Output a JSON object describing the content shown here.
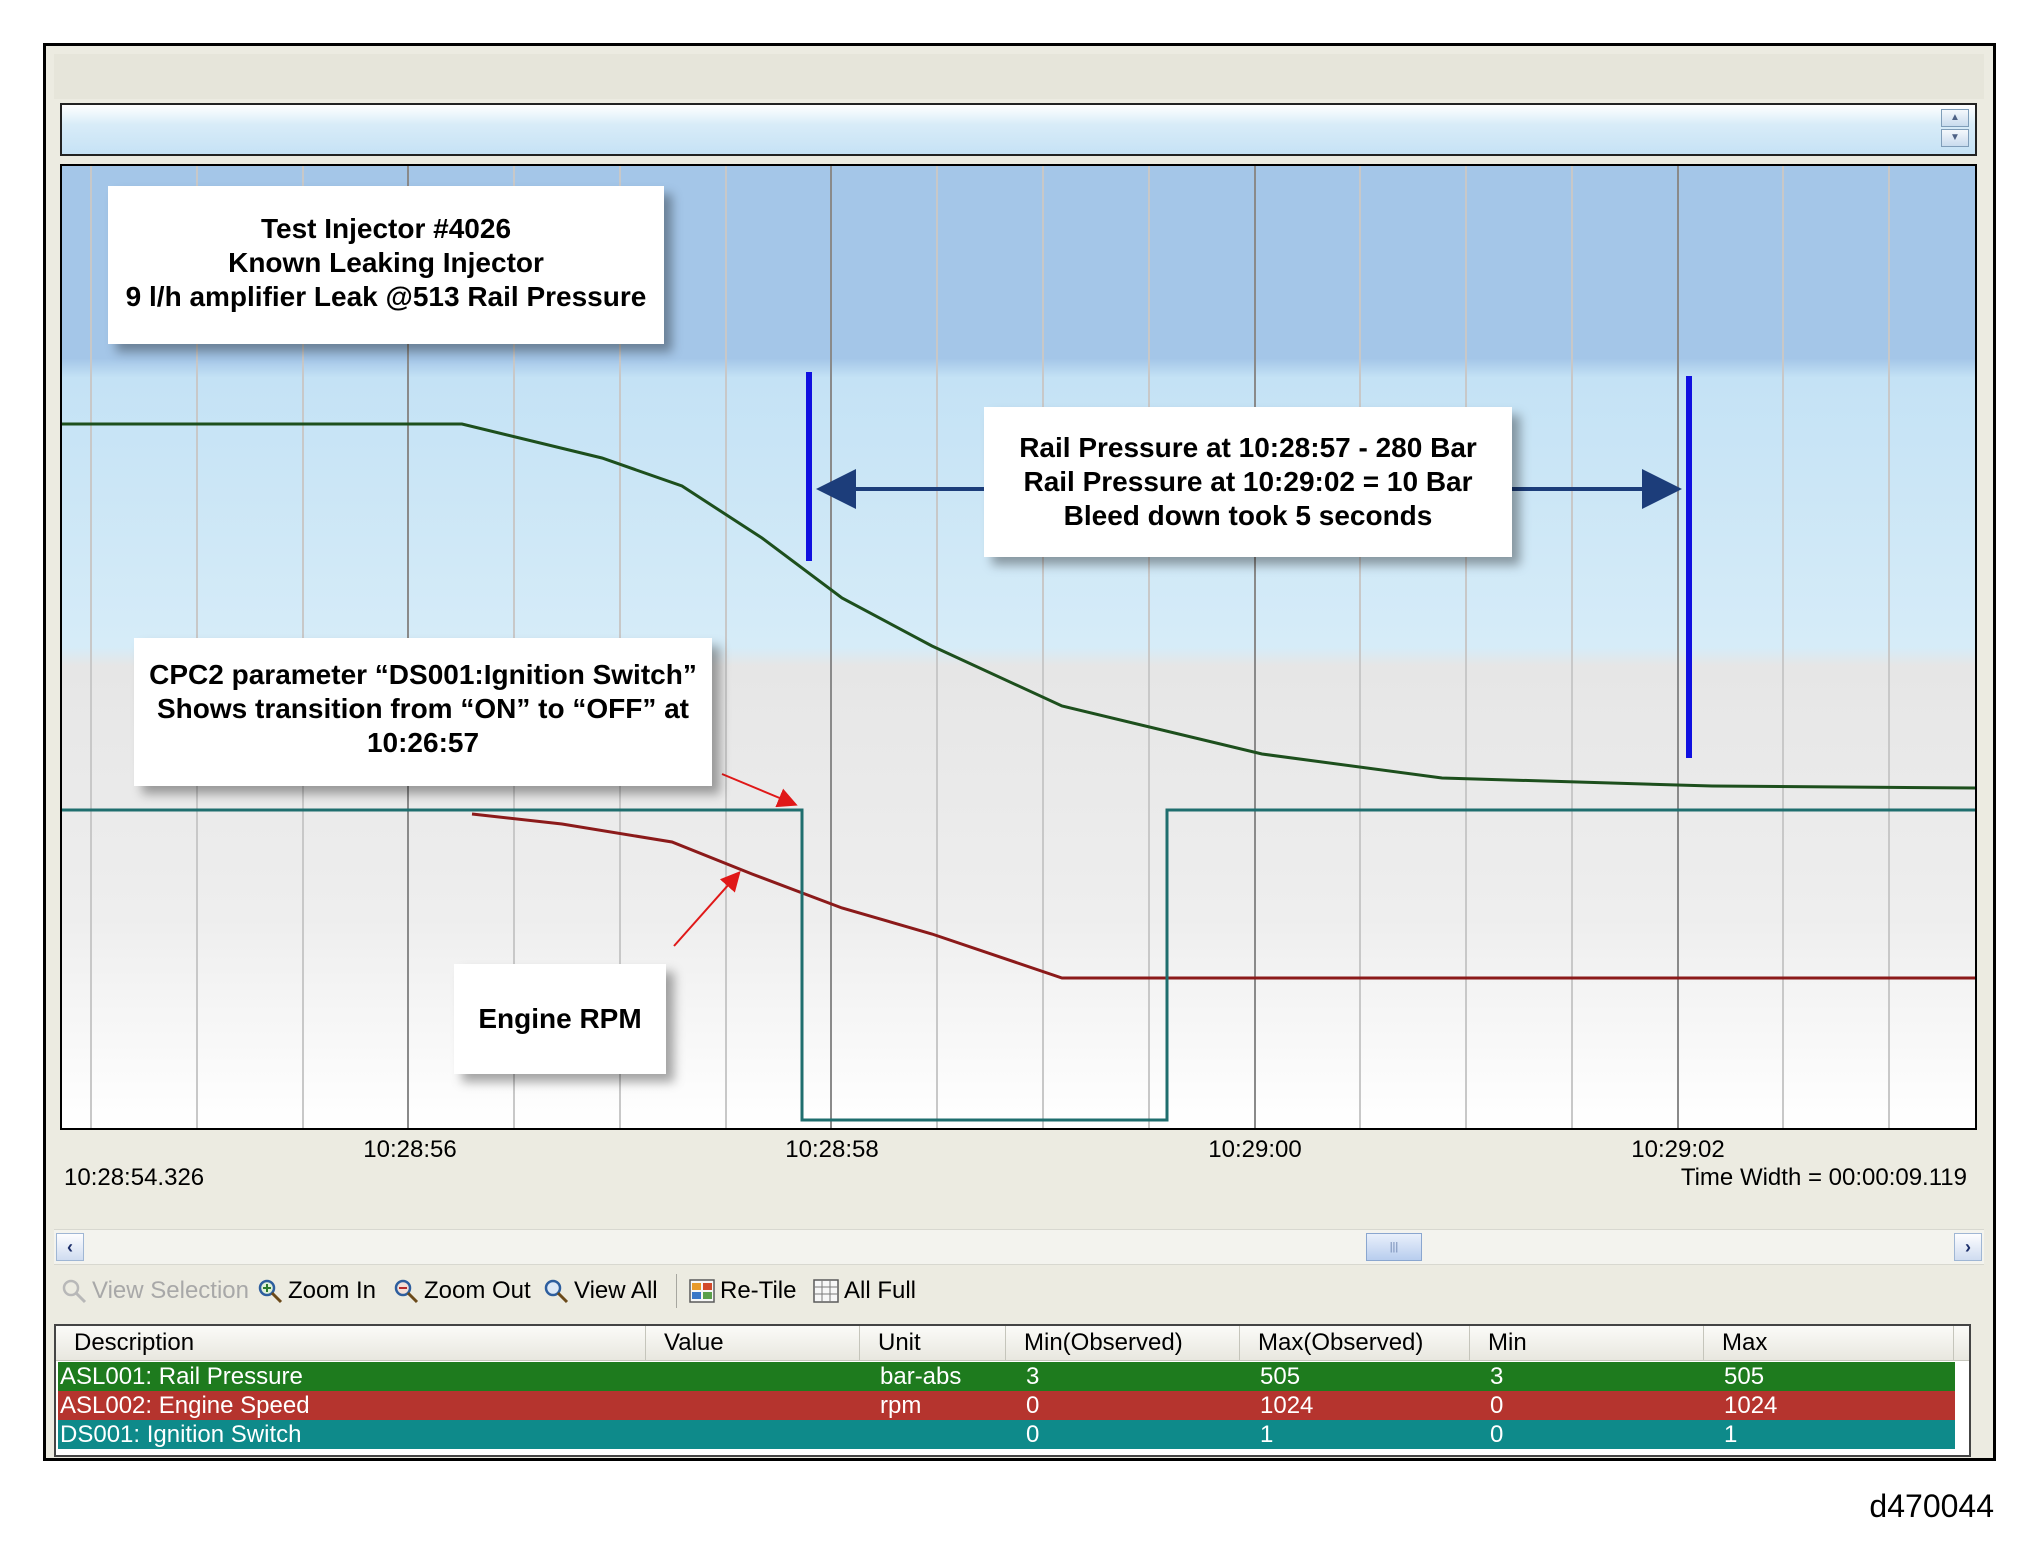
{
  "plot": {
    "title_callout": [
      "Test Injector #4026",
      "Known Leaking Injector",
      "9 l/h amplifier Leak @513 Rail Pressure"
    ],
    "pressure_callout": [
      "Rail Pressure at 10:28:57 - 280 Bar",
      "Rail Pressure at 10:29:02 = 10 Bar",
      "Bleed down took 5 seconds"
    ],
    "ignition_callout": [
      "CPC2 parameter “DS001:Ignition Switch”",
      "Shows transition from “ON” to “OFF” at",
      "10:26:57"
    ],
    "rpm_callout": "Engine RPM",
    "x_ticks": [
      "10:28:56",
      "10:28:58",
      "10:29:00",
      "10:29:02"
    ],
    "start_time": "10:28:54.326",
    "time_width": "Time Width = 00:00:09.119"
  },
  "toolbar": {
    "view_selection": "View Selection",
    "zoom_in": "Zoom In",
    "zoom_out": "Zoom Out",
    "view_all": "View All",
    "re_tile": "Re-Tile",
    "all_full": "All Full"
  },
  "table": {
    "headers": [
      "Description",
      "Value",
      "Unit",
      "Min(Observed)",
      "Max(Observed)",
      "Min",
      "Max"
    ],
    "rows": [
      {
        "description": "ASL001: Rail Pressure",
        "value": "",
        "unit": "bar-abs",
        "min_observed": "3",
        "max_observed": "505",
        "min": "3",
        "max": "505",
        "color": "#1e7b1e"
      },
      {
        "description": "ASL002: Engine Speed",
        "value": "",
        "unit": "rpm",
        "min_observed": "0",
        "max_observed": "1024",
        "min": "0",
        "max": "1024",
        "color": "#b5342e"
      },
      {
        "description": "DS001: Ignition Switch",
        "value": "",
        "unit": "",
        "min_observed": "0",
        "max_observed": "1",
        "min": "0",
        "max": "1",
        "color": "#0e8a8a"
      }
    ]
  },
  "colors": {
    "rail_pressure": "#1d4f1d",
    "engine_speed": "#8b1a1a",
    "ignition_switch": "#1f6e6e",
    "marker": "#1010e0",
    "arrow": "#1c3d7a"
  },
  "figure_id": "d470044"
}
